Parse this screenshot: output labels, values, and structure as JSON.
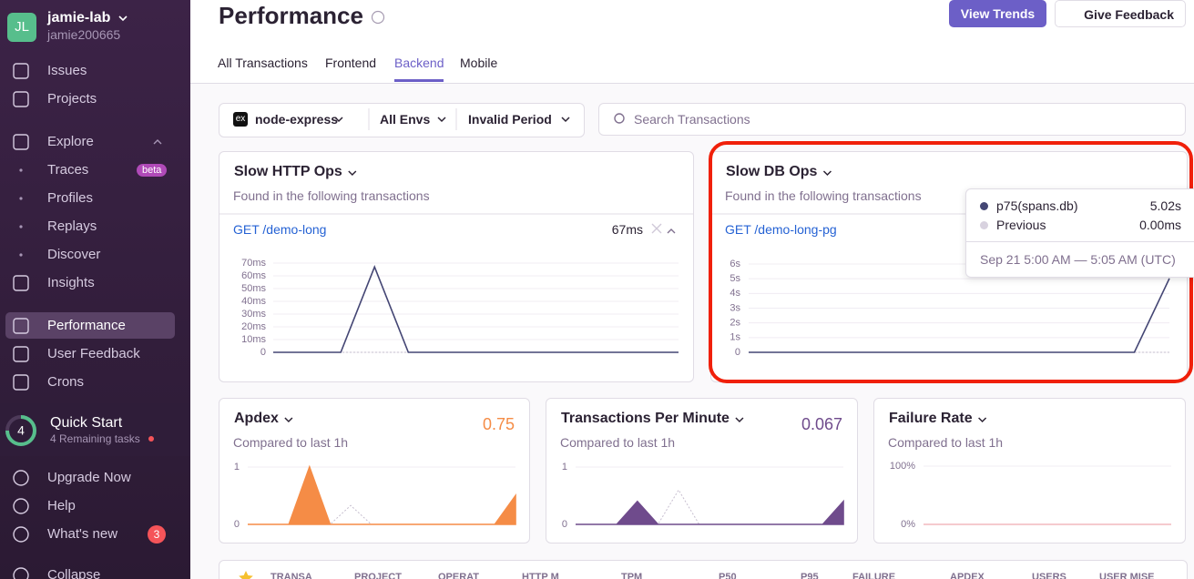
{
  "sidebar": {
    "avatar": "JL",
    "org": "jamie-lab",
    "user": "jamie200665",
    "nav": [
      {
        "label": "Issues"
      },
      {
        "label": "Projects"
      },
      {
        "label": "Explore"
      },
      {
        "label": "Traces",
        "badge": "beta"
      },
      {
        "label": "Profiles"
      },
      {
        "label": "Replays"
      },
      {
        "label": "Discover"
      },
      {
        "label": "Insights"
      },
      {
        "label": "Performance"
      },
      {
        "label": "User Feedback"
      },
      {
        "label": "Crons"
      }
    ],
    "active_nav": 8,
    "quick_start": {
      "count": "4",
      "title": "Quick Start",
      "subtitle": "4 Remaining tasks"
    },
    "footer": [
      {
        "label": "Upgrade Now"
      },
      {
        "label": "Help"
      },
      {
        "label": "What's new",
        "badge": "3"
      },
      {
        "label": "Collapse"
      }
    ]
  },
  "header": {
    "title": "Performance",
    "buttons": [
      "View Trends",
      "Give Feedback"
    ],
    "tabs": [
      "All Transactions",
      "Frontend",
      "Backend",
      "Mobile"
    ],
    "active_tab": 2
  },
  "filters": {
    "project_icon": "ex",
    "project": "node-express",
    "env": "All Envs",
    "period": "Invalid Period",
    "search_placeholder": "Search Transactions"
  },
  "widgets": [
    {
      "title": "Slow HTTP Ops",
      "subtitle": "Found in the following transactions",
      "transaction": "GET /demo-long",
      "value": "67ms",
      "chart": {
        "type": "line",
        "color": "#444674",
        "previous_color": "#c6becf",
        "ylim": [
          0,
          70
        ],
        "yticks": [
          0,
          {
            "value": 10,
            "label": "10ms"
          },
          {
            "value": 20,
            "label": "20ms"
          },
          {
            "value": 30,
            "label": "30ms"
          },
          {
            "value": 40,
            "label": "40ms"
          },
          {
            "value": 50,
            "label": "50ms"
          },
          {
            "value": 60,
            "label": "60ms"
          },
          {
            "value": 70,
            "label": "70ms"
          }
        ],
        "values": [
          0,
          0,
          0,
          67,
          0,
          0,
          0,
          0,
          0,
          0,
          0,
          0,
          0
        ],
        "previous_values": [
          0,
          0,
          0,
          0,
          0,
          0,
          0,
          0,
          0,
          0,
          0,
          0,
          0
        ]
      }
    },
    {
      "title": "Slow DB Ops",
      "subtitle": "Found in the following transactions",
      "transaction": "GET /demo-long-pg",
      "chart": {
        "type": "line",
        "color": "#444674",
        "previous_color": "#c6becf",
        "ylim": [
          0,
          6
        ],
        "yticks": [
          0,
          {
            "value": 1,
            "label": "1s"
          },
          {
            "value": 2,
            "label": "2s"
          },
          {
            "value": 3,
            "label": "3s"
          },
          {
            "value": 4,
            "label": "4s"
          },
          {
            "value": 5,
            "label": "5s"
          },
          {
            "value": 6,
            "label": "6s"
          }
        ],
        "values": [
          0,
          0,
          0,
          0,
          0,
          0,
          0,
          0,
          0,
          0,
          0,
          0,
          5.02
        ],
        "previous_values": [
          0,
          0,
          0,
          0,
          0,
          0,
          0,
          0,
          0,
          0,
          0,
          0,
          0
        ]
      },
      "tooltip": {
        "series": "p75(spans.db)",
        "value": "5.02s",
        "previous": "Previous",
        "previous_value": "0.00ms",
        "time": "Sep 21 5:00 AM — 5:05 AM (UTC)"
      }
    },
    {
      "title": "Apdex",
      "subtitle": "Compared to last 1h",
      "value": "0.75",
      "chart": {
        "type": "area",
        "color": "#f58c46",
        "previous_color": "#c6becf",
        "ylim": [
          0,
          1
        ],
        "yticks": [
          0,
          1
        ],
        "values": [
          0,
          0,
          0,
          1,
          0,
          0,
          0,
          0,
          0,
          0,
          0,
          0,
          0,
          0.5
        ],
        "previous_values": [
          0,
          0,
          0,
          0,
          0,
          0.33,
          0,
          0,
          0,
          0,
          0,
          0,
          0,
          0
        ]
      }
    },
    {
      "title": "Transactions Per Minute",
      "subtitle": "Compared to last 1h",
      "value": "0.067",
      "chart": {
        "type": "area",
        "color": "#6f4b8c",
        "previous_color": "#c6becf",
        "ylim": [
          0,
          1
        ],
        "yticks": [
          0,
          1
        ],
        "values": [
          0,
          0,
          0,
          0.4,
          0,
          0,
          0,
          0,
          0,
          0,
          0,
          0,
          0,
          0.4
        ],
        "previous_values": [
          0,
          0,
          0,
          0,
          0,
          0.6,
          0,
          0,
          0,
          0,
          0,
          0,
          0,
          0
        ]
      }
    },
    {
      "title": "Failure Rate",
      "subtitle": "Compared to last 1h",
      "chart": {
        "type": "line",
        "color": "#f2b8bd",
        "previous_color": "#e6e0eb",
        "ylim": [
          0,
          100
        ],
        "yticks": [
          {
            "value": 0,
            "label": "0%"
          },
          {
            "value": 100,
            "label": "100%"
          }
        ],
        "values": [
          0,
          0,
          0,
          0,
          0,
          0,
          0,
          0,
          0,
          0,
          0,
          0,
          0,
          0
        ],
        "previous_values": [
          0,
          0,
          0,
          0,
          0,
          0,
          0,
          0,
          0,
          0,
          0,
          0,
          0,
          0
        ]
      }
    }
  ],
  "table": {
    "columns": [
      "TRANSA",
      "PROJECT",
      "OPERAT",
      "HTTP M",
      "TPM",
      "P50",
      "P95",
      "FAILURE",
      "APDEX",
      "USERS",
      "USER MISE"
    ]
  }
}
